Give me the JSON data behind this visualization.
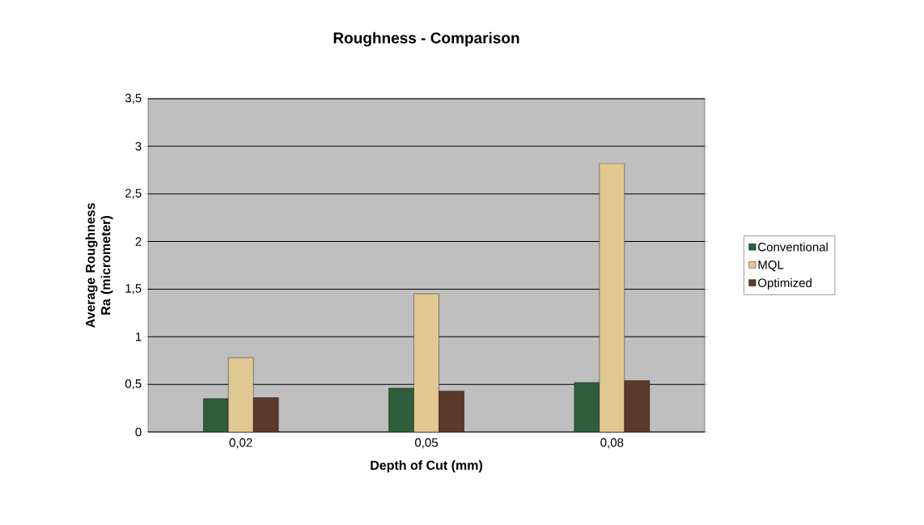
{
  "chart_data": {
    "type": "bar",
    "title": "Roughness - Comparison",
    "xlabel": "Depth of Cut (mm)",
    "ylabel": "Average Roughness Ra (micrometer)",
    "categories": [
      "0,02",
      "0,05",
      "0,08"
    ],
    "series": [
      {
        "name": "Conventional",
        "color": "#2e5e3a",
        "values": [
          0.35,
          0.46,
          0.52
        ]
      },
      {
        "name": "MQL",
        "color": "#e0c890",
        "values": [
          0.78,
          1.45,
          2.82
        ]
      },
      {
        "name": "Optimized",
        "color": "#5a3a28",
        "values": [
          0.36,
          0.43,
          0.54
        ]
      }
    ],
    "ylim": [
      0,
      3.5
    ],
    "yticks": [
      0,
      {
        "value": 0.5,
        "label": "0,5"
      },
      1,
      {
        "value": 1.5,
        "label": "1,5"
      },
      2,
      {
        "value": 2.5,
        "label": "2,5"
      },
      3,
      {
        "value": 3.5,
        "label": "3,5"
      }
    ],
    "grid": "y",
    "legend": "right"
  }
}
